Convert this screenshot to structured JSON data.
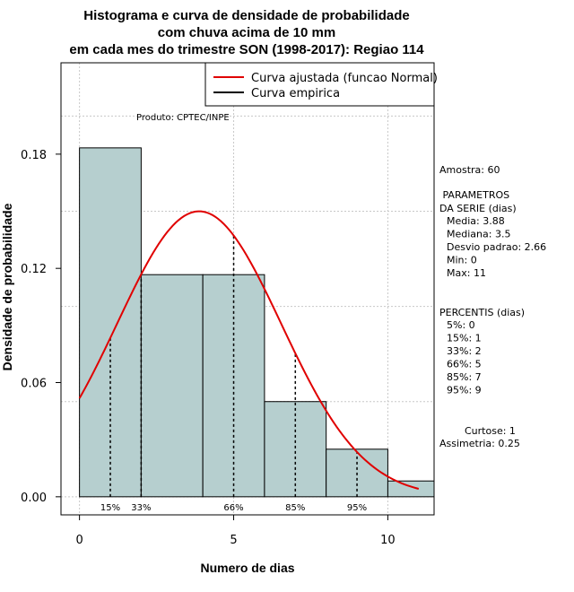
{
  "chart_data": {
    "type": "bar",
    "title": [
      "Histograma e curva de densidade de probabilidade",
      "com chuva acima de 10 mm",
      "em cada mes do trimestre SON (1998-2017): Regiao 114"
    ],
    "xlabel": "Numero de dias",
    "ylabel": "Densidade de probabilidade",
    "xlim": [
      -0.6,
      11.5
    ],
    "ylim": [
      -0.0095,
      0.228
    ],
    "x_ticks": [
      0,
      5,
      10
    ],
    "y_ticks": [
      0.0,
      0.06,
      0.12,
      0.18
    ],
    "y_tick_labels": [
      "0.00",
      "0.06",
      "0.12",
      "0.18"
    ],
    "grid": true,
    "bins": [
      {
        "start": 0,
        "end": 2,
        "density": 0.1833
      },
      {
        "start": 2,
        "end": 4,
        "density": 0.1167
      },
      {
        "start": 4,
        "end": 6,
        "density": 0.1167
      },
      {
        "start": 6,
        "end": 8,
        "density": 0.05
      },
      {
        "start": 8,
        "end": 10,
        "density": 0.025
      },
      {
        "start": 10,
        "end": 12,
        "density": 0.0083
      }
    ],
    "normal_curve": {
      "mean": 3.88,
      "sd": 2.66,
      "x_from": 0,
      "x_to": 11
    },
    "percentile_lines": [
      {
        "label": "15%",
        "x": 1
      },
      {
        "label": "33%",
        "x": 2
      },
      {
        "label": "66%",
        "x": 5
      },
      {
        "label": "85%",
        "x": 7
      },
      {
        "label": "95%",
        "x": 9
      }
    ],
    "legend": {
      "position": "top-right",
      "entries": [
        {
          "label": "Curva ajustada (funcao Normal)",
          "color": "#e00000"
        },
        {
          "label": "Curva empirica",
          "color": "#000000"
        }
      ]
    },
    "annotation": "Produto: CPTEC/INPE",
    "colors": {
      "bar_fill": "#b6cfcf",
      "curve": "#e00000",
      "grid": "#c8c8c8"
    }
  },
  "side_panel": {
    "amostra": "Amostra: 60",
    "param_head": [
      " PARAMETROS",
      "DA SERIE (dias)"
    ],
    "params": [
      "Media: 3.88",
      "Mediana: 3.5",
      "Desvio padrao: 2.66",
      "Min: 0",
      "Max: 11"
    ],
    "perc_head": "PERCENTIS (dias)",
    "percentis": [
      "5%: 0",
      "15%: 1",
      "33%: 2",
      "66%: 5",
      "85%: 7",
      "95%: 9"
    ],
    "curtose": "Curtose: 1",
    "assimetria": "Assimetria: 0.25"
  }
}
